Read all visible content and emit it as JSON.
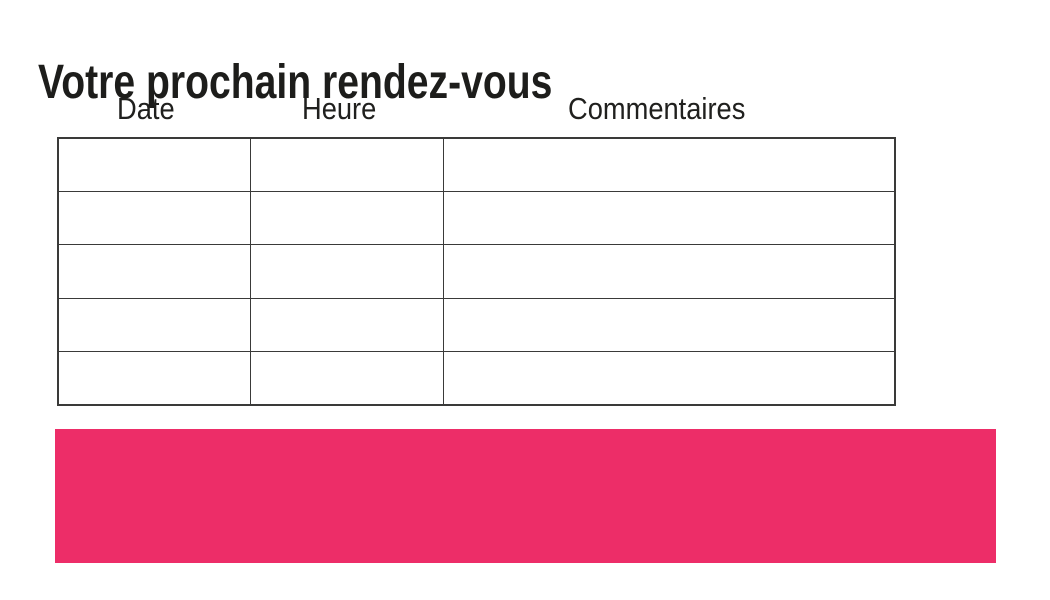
{
  "slide": {
    "title": "Votre prochain rendez-vous"
  },
  "table": {
    "headers": [
      {
        "label": "Date"
      },
      {
        "label": "Heure"
      },
      {
        "label": "Commentaires"
      }
    ],
    "rows": [
      [
        "",
        "",
        ""
      ],
      [
        "",
        "",
        ""
      ],
      [
        "",
        "",
        ""
      ],
      [
        "",
        "",
        ""
      ],
      [
        "",
        "",
        ""
      ]
    ]
  },
  "colors": {
    "accent_pink": "#ED2D68",
    "table_border": "#3A3A39",
    "text": "#1D1D1B"
  }
}
